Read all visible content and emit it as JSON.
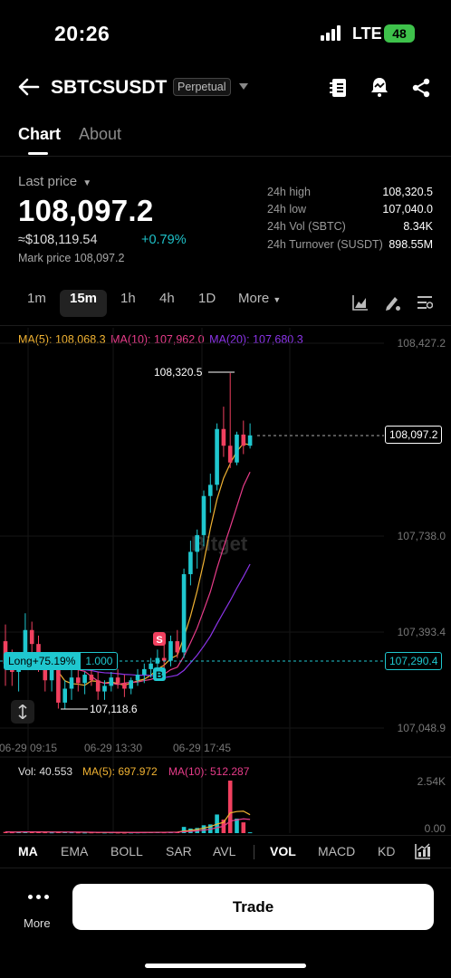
{
  "status_bar": {
    "time": "20:26",
    "network": "LTE",
    "battery": "48"
  },
  "header": {
    "pair": "SBTCSUSDT",
    "type_badge": "Perpetual"
  },
  "tabs": [
    {
      "label": "Chart"
    },
    {
      "label": "About"
    }
  ],
  "ticker": {
    "last_price_label": "Last price",
    "last_price": "108,097.2",
    "usd_value": "≈$108,119.54",
    "change": "+0.79%",
    "mark_price": "Mark price 108,097.2"
  },
  "stats": [
    {
      "label": "24h high",
      "value": "108,320.5"
    },
    {
      "label": "24h low",
      "value": "107,040.0"
    },
    {
      "label": "24h Vol (SBTC)",
      "value": "8.34K"
    },
    {
      "label": "24h Turnover (SUSDT)",
      "value": "898.55M"
    }
  ],
  "intervals": {
    "items": [
      "1m",
      "15m",
      "1h",
      "4h",
      "1D"
    ],
    "selected": "15m",
    "more": "More"
  },
  "ma_legend": {
    "ma5": "MA(5): 108,068.3",
    "ma10": "MA(10): 107,962.0",
    "ma20": "MA(20): 107,680.3"
  },
  "price_axis": [
    "108,427.2",
    "107,738.0",
    "107,393.4",
    "107,048.9"
  ],
  "current_price_tag": "108,097.2",
  "position_price_tag": "107,290.4",
  "position": {
    "label": "Long+75.19%",
    "size": "1.000"
  },
  "annotations": {
    "high": "108,320.5",
    "low": "107,118.6",
    "sell": "S",
    "buy": "B"
  },
  "time_axis": [
    "06-29 09:15",
    "06-29 13:30",
    "06-29 17:45"
  ],
  "watermark": "Bitget",
  "volume": {
    "vol": "Vol: 40.553",
    "ma5": "MA(5): 697.972",
    "ma10": "MA(10): 512.287",
    "axis_top": "2.54K",
    "axis_bottom": "0.00"
  },
  "indicator_tabs": {
    "main": [
      "MA",
      "EMA",
      "BOLL",
      "SAR",
      "AVL"
    ],
    "sub": [
      "VOL",
      "MACD",
      "KD"
    ]
  },
  "bottom": {
    "more": "More",
    "trade": "Trade"
  },
  "colors": {
    "up": "#1fc7cf",
    "down": "#f1405f",
    "ma5": "#f0b232",
    "ma10": "#e83c8a",
    "ma20": "#8b34e8"
  },
  "chart_data": {
    "type": "candlestick",
    "title": "",
    "interval": "15m",
    "ylim": [
      107048.9,
      108427.2
    ],
    "x_ticks": [
      "06-29 09:15",
      "06-29 13:30",
      "06-29 17:45"
    ],
    "candles": [
      {
        "o": 107360,
        "h": 107420,
        "l": 107200,
        "c": 107280
      },
      {
        "o": 107280,
        "h": 107330,
        "l": 107200,
        "c": 107250
      },
      {
        "o": 107250,
        "h": 107320,
        "l": 107180,
        "c": 107300
      },
      {
        "o": 107300,
        "h": 107460,
        "l": 107260,
        "c": 107400
      },
      {
        "o": 107400,
        "h": 107430,
        "l": 107320,
        "c": 107350
      },
      {
        "o": 107350,
        "h": 107380,
        "l": 107250,
        "c": 107280
      },
      {
        "o": 107280,
        "h": 107320,
        "l": 107180,
        "c": 107220
      },
      {
        "o": 107220,
        "h": 107290,
        "l": 107180,
        "c": 107260
      },
      {
        "o": 107260,
        "h": 107300,
        "l": 107118.6,
        "c": 107140
      },
      {
        "o": 107140,
        "h": 107220,
        "l": 107118.6,
        "c": 107190
      },
      {
        "o": 107190,
        "h": 107260,
        "l": 107150,
        "c": 107230
      },
      {
        "o": 107230,
        "h": 107270,
        "l": 107180,
        "c": 107210
      },
      {
        "o": 107210,
        "h": 107250,
        "l": 107170,
        "c": 107240
      },
      {
        "o": 107240,
        "h": 107270,
        "l": 107200,
        "c": 107220
      },
      {
        "o": 107220,
        "h": 107250,
        "l": 107150,
        "c": 107180
      },
      {
        "o": 107180,
        "h": 107220,
        "l": 107150,
        "c": 107200
      },
      {
        "o": 107200,
        "h": 107250,
        "l": 107180,
        "c": 107230
      },
      {
        "o": 107230,
        "h": 107260,
        "l": 107190,
        "c": 107210
      },
      {
        "o": 107210,
        "h": 107240,
        "l": 107160,
        "c": 107190
      },
      {
        "o": 107190,
        "h": 107230,
        "l": 107170,
        "c": 107220
      },
      {
        "o": 107220,
        "h": 107260,
        "l": 107200,
        "c": 107240
      },
      {
        "o": 107240,
        "h": 107280,
        "l": 107210,
        "c": 107260
      },
      {
        "o": 107260,
        "h": 107300,
        "l": 107230,
        "c": 107280
      },
      {
        "o": 107280,
        "h": 107330,
        "l": 107250,
        "c": 107300
      },
      {
        "o": 107300,
        "h": 107350,
        "l": 107260,
        "c": 107290
      },
      {
        "o": 107290,
        "h": 107380,
        "l": 107270,
        "c": 107360
      },
      {
        "o": 107360,
        "h": 107400,
        "l": 107300,
        "c": 107320
      },
      {
        "o": 107320,
        "h": 107620,
        "l": 107300,
        "c": 107600
      },
      {
        "o": 107600,
        "h": 107720,
        "l": 107560,
        "c": 107680
      },
      {
        "o": 107680,
        "h": 107760,
        "l": 107620,
        "c": 107740
      },
      {
        "o": 107740,
        "h": 107900,
        "l": 107700,
        "c": 107880
      },
      {
        "o": 107880,
        "h": 107960,
        "l": 107820,
        "c": 107920
      },
      {
        "o": 107920,
        "h": 108140,
        "l": 107900,
        "c": 108120
      },
      {
        "o": 108120,
        "h": 108200,
        "l": 108020,
        "c": 108060
      },
      {
        "o": 108060,
        "h": 108320.5,
        "l": 107980,
        "c": 108000
      },
      {
        "o": 108000,
        "h": 108110,
        "l": 107990,
        "c": 108100
      },
      {
        "o": 108100,
        "h": 108150,
        "l": 108030,
        "c": 108060
      },
      {
        "o": 108060,
        "h": 108140,
        "l": 108050,
        "c": 108097.2
      }
    ],
    "volume": [
      60,
      40,
      55,
      80,
      50,
      45,
      40,
      35,
      70,
      45,
      40,
      35,
      30,
      35,
      40,
      30,
      35,
      30,
      25,
      30,
      35,
      40,
      45,
      50,
      40,
      60,
      55,
      300,
      220,
      250,
      380,
      420,
      900,
      650,
      2540,
      700,
      520,
      40.553
    ]
  }
}
